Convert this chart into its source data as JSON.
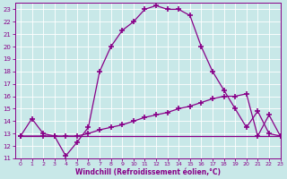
{
  "xlabel": "Windchill (Refroidissement éolien,°C)",
  "bg_color": "#c8e8e8",
  "grid_color": "#b0d0d0",
  "line_color": "#880088",
  "xlim": [
    -0.5,
    23
  ],
  "ylim": [
    11,
    23.5
  ],
  "yticks": [
    11,
    12,
    13,
    14,
    15,
    16,
    17,
    18,
    19,
    20,
    21,
    22,
    23
  ],
  "xticks": [
    0,
    1,
    2,
    3,
    4,
    5,
    6,
    7,
    8,
    9,
    10,
    11,
    12,
    13,
    14,
    15,
    16,
    17,
    18,
    19,
    20,
    21,
    22,
    23
  ],
  "curve1_x": [
    0,
    1,
    2,
    3,
    4,
    5,
    6,
    7,
    8,
    9,
    10,
    11,
    12,
    13,
    14,
    15,
    16,
    17,
    18,
    19,
    20,
    21,
    22,
    23
  ],
  "curve1_y": [
    12.8,
    14.2,
    13.0,
    12.8,
    11.2,
    12.3,
    13.5,
    18.0,
    20.0,
    21.3,
    22.0,
    23.0,
    23.3,
    23.0,
    23.0,
    22.5,
    20.0,
    18.0,
    16.5,
    15.0,
    13.5,
    14.8,
    13.0,
    12.8
  ],
  "curve2_x": [
    0,
    2,
    3,
    4,
    5,
    6,
    7,
    8,
    9,
    10,
    11,
    12,
    13,
    14,
    15,
    16,
    17,
    18,
    19,
    20,
    21,
    22,
    23
  ],
  "curve2_y": [
    12.8,
    12.8,
    12.8,
    12.8,
    12.8,
    13.0,
    13.3,
    13.5,
    13.7,
    14.0,
    14.3,
    14.5,
    14.7,
    15.0,
    15.2,
    15.5,
    15.8,
    16.0,
    16.0,
    16.2,
    12.8,
    14.5,
    12.8
  ],
  "curve3_x": [
    0,
    5,
    10,
    15,
    20,
    21,
    22,
    23
  ],
  "curve3_y": [
    12.8,
    12.8,
    12.8,
    12.8,
    12.8,
    12.8,
    12.8,
    12.8
  ]
}
